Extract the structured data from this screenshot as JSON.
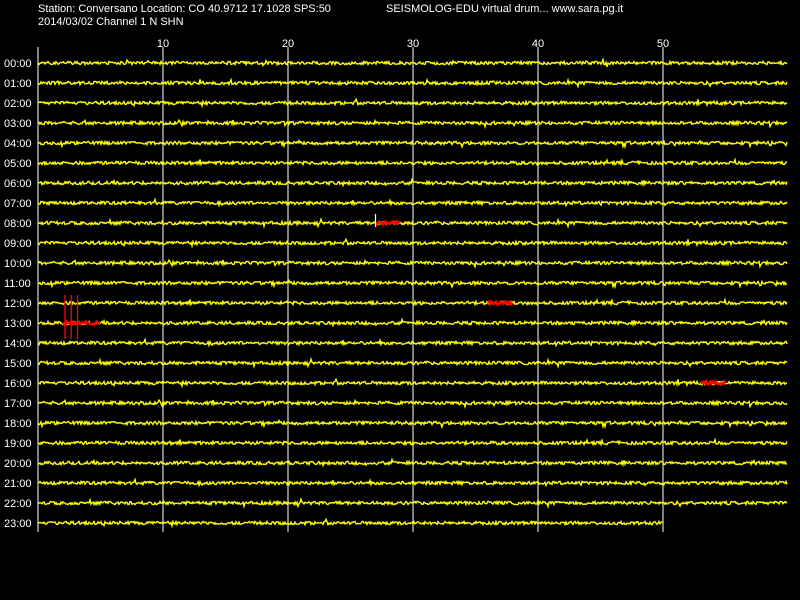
{
  "header": {
    "station_line": "Station: Conversano Location: CO 40.9712 17.1028 SPS:50",
    "date_line": "2014/03/02  Channel 1 N SHN",
    "title_line": "SEISMOLOG-EDU virtual drum... www.sara.pg.it"
  },
  "colors": {
    "background": "#000000",
    "trace": "#ffff00",
    "event": "#ff0000",
    "grid": "#ffffff",
    "text": "#ffffff"
  },
  "drum": {
    "minute_ticks": [
      "10",
      "20",
      "30",
      "40",
      "50"
    ],
    "minute_tick_values": [
      10,
      20,
      30,
      40,
      50
    ],
    "minutes_per_row": 60,
    "hours": [
      "00:00",
      "01:00",
      "02:00",
      "03:00",
      "04:00",
      "05:00",
      "06:00",
      "07:00",
      "08:00",
      "09:00",
      "10:00",
      "11:00",
      "12:00",
      "13:00",
      "14:00",
      "15:00",
      "16:00",
      "17:00",
      "18:00",
      "19:00",
      "20:00",
      "21:00",
      "22:00",
      "23:00"
    ],
    "last_row_end_minute": 50,
    "events": [
      {
        "hour": 8,
        "start_minute": 27,
        "end_minute": 29,
        "spike_minute": 27
      },
      {
        "hour": 12,
        "start_minute": 36,
        "end_minute": 38,
        "spike_minute": null
      },
      {
        "hour": 13,
        "start_minute": 2,
        "end_minute": 5,
        "spike_minute": 2
      },
      {
        "hour": 16,
        "start_minute": 53,
        "end_minute": 55,
        "spike_minute": null
      }
    ]
  }
}
